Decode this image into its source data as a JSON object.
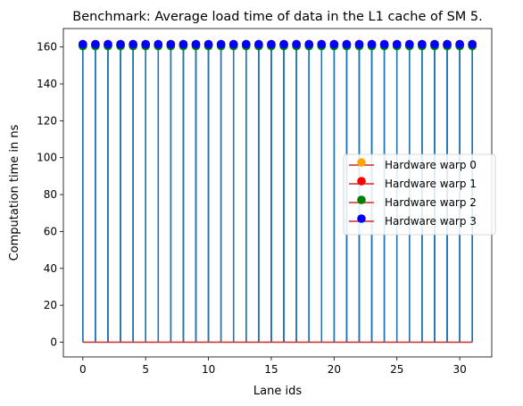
{
  "chart_data": {
    "type": "scatter",
    "style": "stem",
    "title": "Benchmark: Average load time of data in the L1 cache of SM 5.",
    "xlabel": "Lane ids",
    "ylabel": "Computation time in ns",
    "xlim": [
      -1.55,
      32.55
    ],
    "ylim": [
      -8,
      170
    ],
    "xticks": [
      0,
      5,
      10,
      15,
      20,
      25,
      30
    ],
    "yticks": [
      0,
      20,
      40,
      60,
      80,
      100,
      120,
      140,
      160
    ],
    "grid": false,
    "legend_position": "center-right",
    "stem_color": "#1f77b4",
    "baseline_color": "#d62728",
    "x": [
      0,
      1,
      2,
      3,
      4,
      5,
      6,
      7,
      8,
      9,
      10,
      11,
      12,
      13,
      14,
      15,
      16,
      17,
      18,
      19,
      20,
      21,
      22,
      23,
      24,
      25,
      26,
      27,
      28,
      29,
      30,
      31
    ],
    "series": [
      {
        "name": "Hardware warp 0",
        "color": "#ffa500",
        "values": [
          161.5,
          161.5,
          161.5,
          161.5,
          161.5,
          161.5,
          161.5,
          161.5,
          161.5,
          161.5,
          161.5,
          161.5,
          161.5,
          161.5,
          161.5,
          161.5,
          161.5,
          161.5,
          161.5,
          161.5,
          161.5,
          161.5,
          161.5,
          161.5,
          161.5,
          161.5,
          161.5,
          161.5,
          161.5,
          161.5,
          161.5,
          161.5
        ]
      },
      {
        "name": "Hardware warp 1",
        "color": "#ff0000",
        "values": [
          161.5,
          161.5,
          161.5,
          161.5,
          161.5,
          161.5,
          161.5,
          161.5,
          161.5,
          161.5,
          161.5,
          161.5,
          161.5,
          161.5,
          161.5,
          161.5,
          161.5,
          161.5,
          161.5,
          161.5,
          161.5,
          161.5,
          161.5,
          161.5,
          161.5,
          161.5,
          161.5,
          161.5,
          161.5,
          161.5,
          161.5,
          161.5
        ]
      },
      {
        "name": "Hardware warp 2",
        "color": "#008000",
        "values": [
          160.5,
          160.5,
          160.5,
          160.5,
          160.5,
          160.5,
          160.5,
          160.5,
          160.5,
          160.5,
          160.5,
          160.5,
          160.5,
          160.5,
          160.5,
          160.5,
          160.5,
          160.5,
          160.5,
          160.5,
          160.5,
          160.5,
          160.5,
          160.5,
          160.5,
          160.5,
          160.5,
          160.5,
          160.5,
          160.5,
          160.5,
          160.5
        ]
      },
      {
        "name": "Hardware warp 3",
        "color": "#0000ff",
        "values": [
          161.5,
          161.5,
          161.5,
          161.5,
          161.5,
          161.5,
          161.5,
          161.5,
          161.5,
          161.5,
          161.5,
          161.5,
          161.5,
          161.5,
          161.5,
          161.5,
          161.5,
          161.5,
          161.5,
          161.5,
          161.5,
          161.5,
          161.5,
          161.5,
          161.5,
          161.5,
          161.5,
          161.5,
          161.5,
          161.5,
          161.5,
          161.5
        ]
      }
    ]
  }
}
